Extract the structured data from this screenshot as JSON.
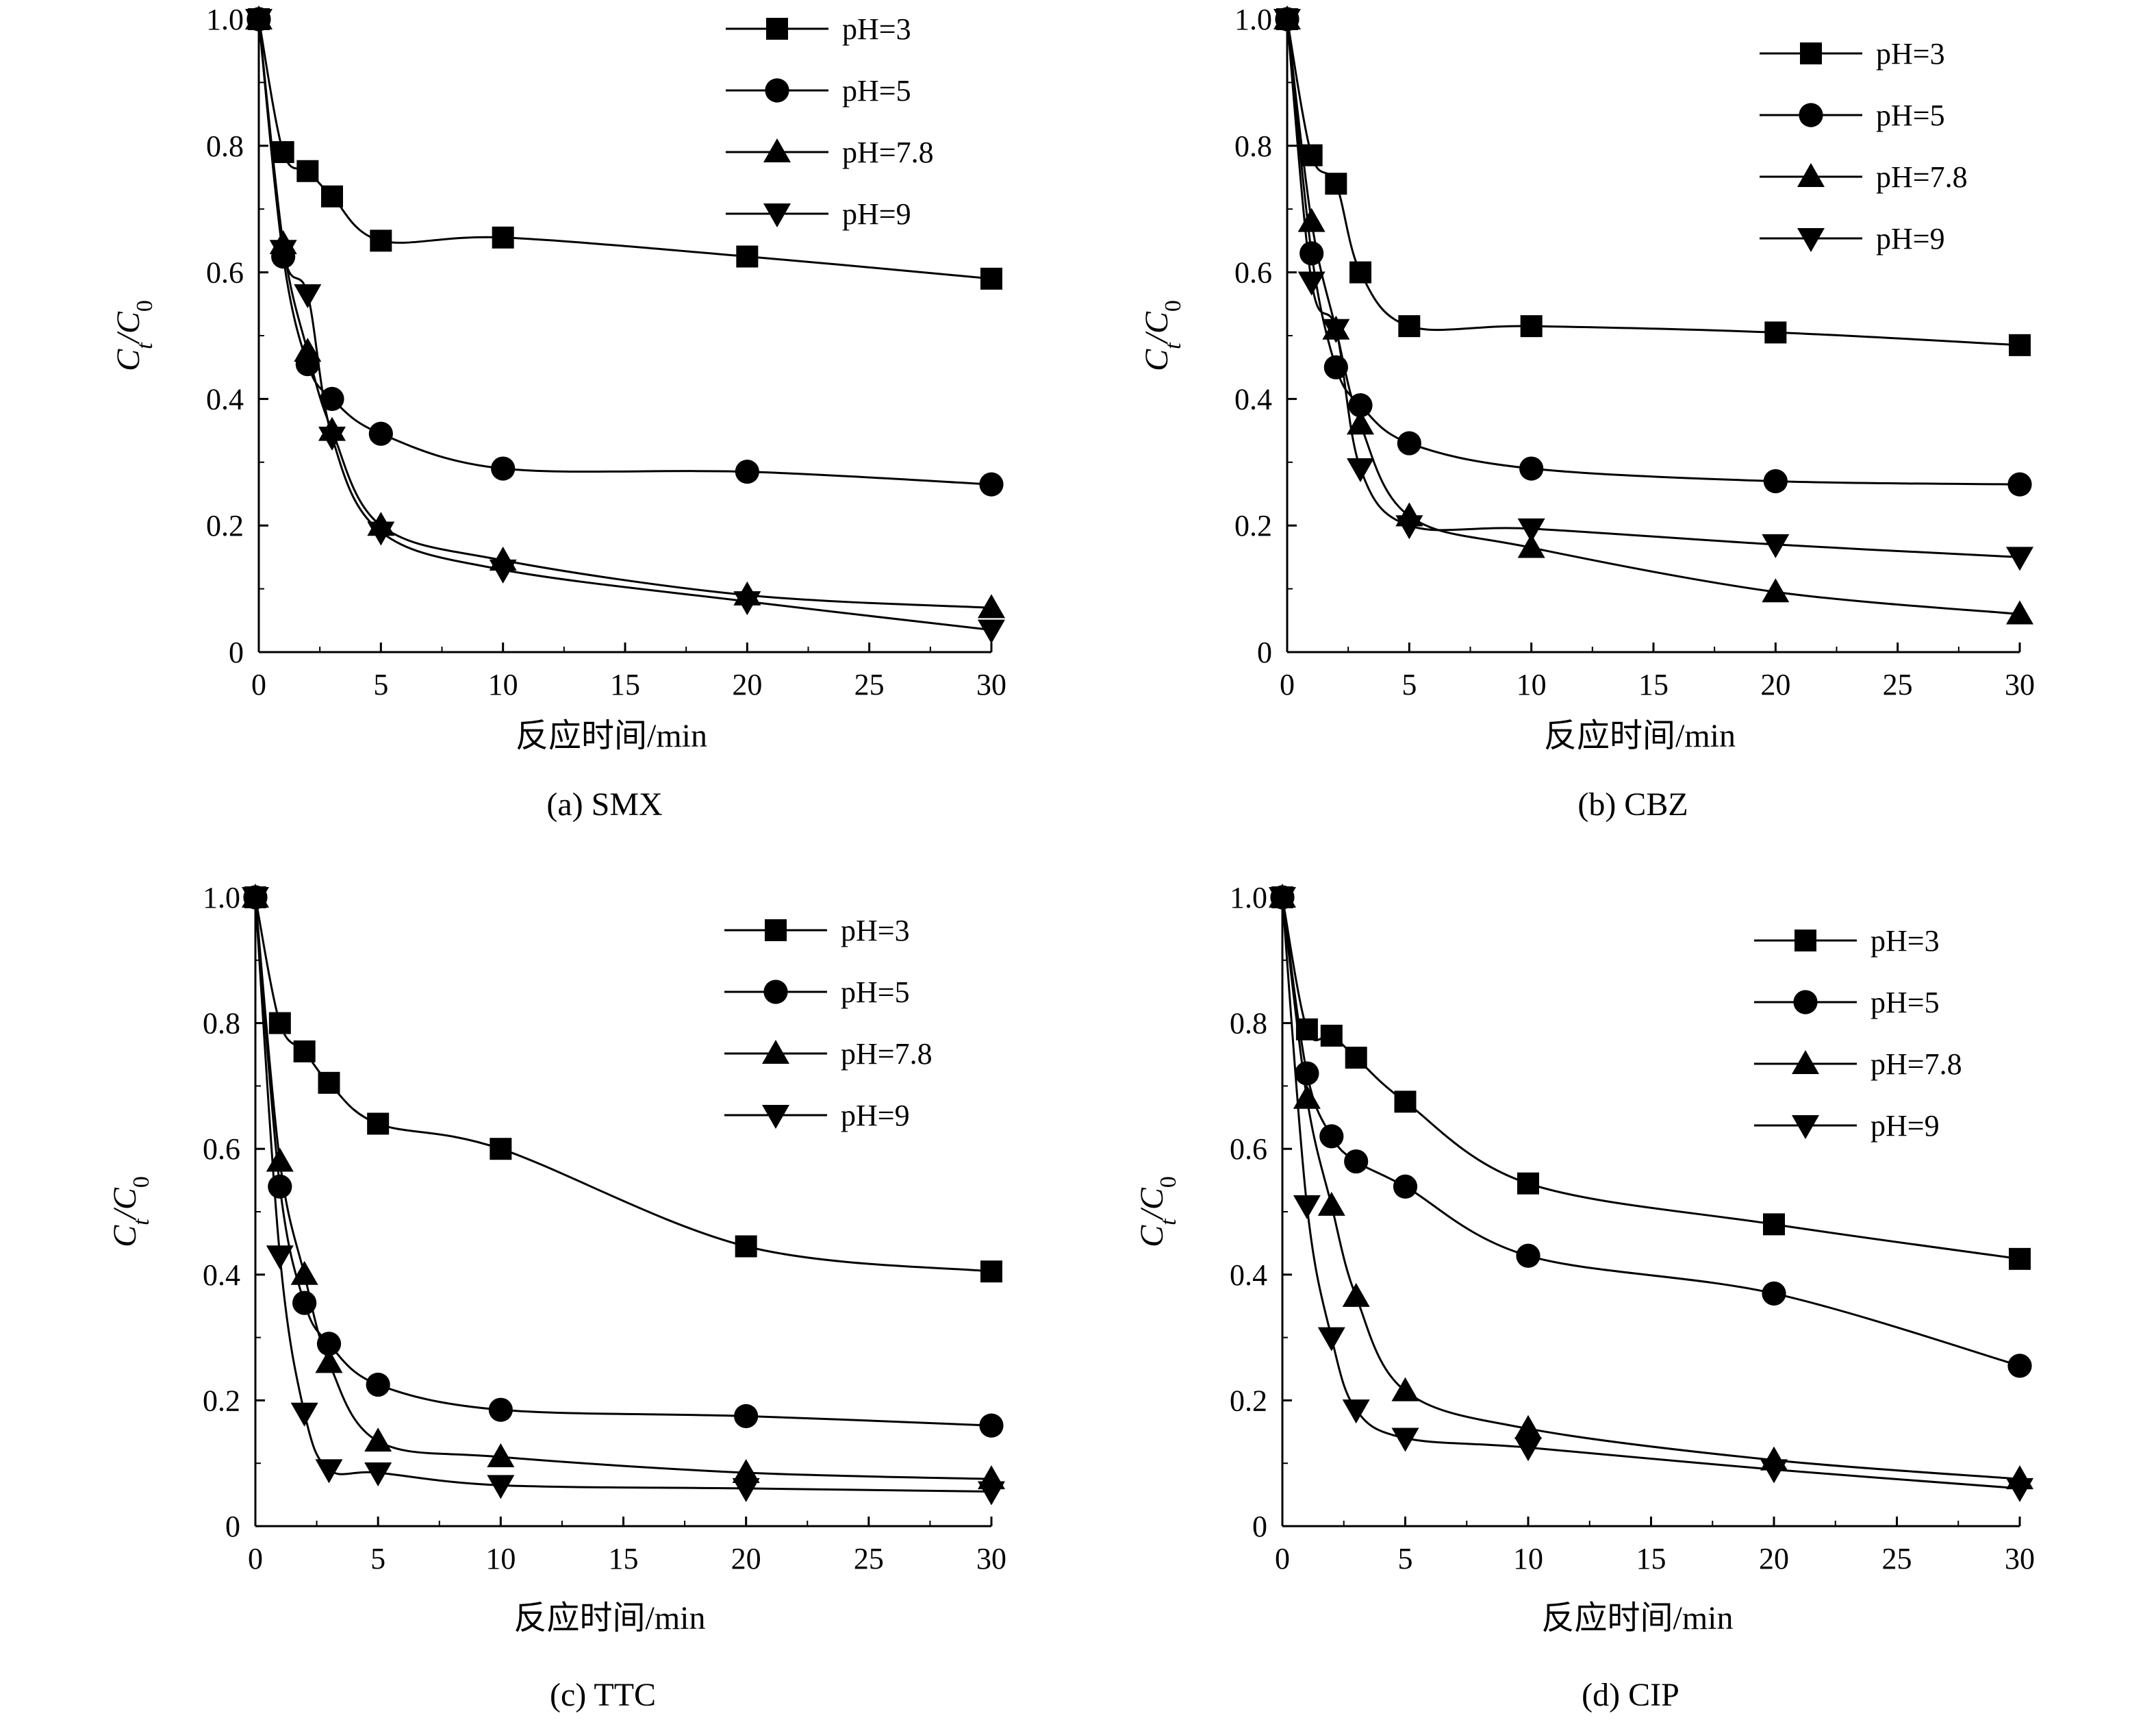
{
  "figure": {
    "x_axis_title": "反应时间/min",
    "y_axis_title_main": "C",
    "y_axis_title_sub1": "t",
    "y_axis_title_sep": "/C",
    "y_axis_title_sub2": "0"
  },
  "chart_data": [
    {
      "type": "line",
      "caption": "(a) SMX",
      "xlabel": "反应时间/min",
      "ylabel": "Ct/C0",
      "xlim": [
        0,
        30
      ],
      "ylim": [
        0,
        1.0
      ],
      "xticks": [
        0,
        5,
        10,
        15,
        20,
        25,
        30
      ],
      "xtick_labels": [
        "0",
        "5",
        "10",
        "15",
        "20",
        "25",
        "30"
      ],
      "yticks": [
        0,
        0.2,
        0.4,
        0.6,
        0.8,
        1.0
      ],
      "ytick_labels": [
        "0",
        "0.2",
        "0.4",
        "0.6",
        "0.8",
        "1.0"
      ],
      "legend_position": "top-right",
      "x": [
        0,
        1,
        2,
        3,
        5,
        10,
        20,
        30
      ],
      "series": [
        {
          "name": "pH=3",
          "marker": "square",
          "values": [
            1.0,
            0.79,
            0.76,
            0.72,
            0.65,
            0.655,
            0.625,
            0.59
          ]
        },
        {
          "name": "pH=5",
          "marker": "circle",
          "values": [
            1.0,
            0.625,
            0.455,
            0.4,
            0.345,
            0.29,
            0.285,
            0.265
          ]
        },
        {
          "name": "pH=7.8",
          "marker": "triangle-up",
          "values": [
            1.0,
            0.645,
            0.475,
            0.35,
            0.2,
            0.145,
            0.09,
            0.07
          ]
        },
        {
          "name": "pH=9",
          "marker": "triangle-down",
          "values": [
            1.0,
            0.635,
            0.565,
            0.34,
            0.19,
            0.13,
            0.08,
            0.035
          ]
        }
      ]
    },
    {
      "type": "line",
      "caption": "(b) CBZ",
      "xlabel": "反应时间/min",
      "ylabel": "Ct/C0",
      "xlim": [
        0,
        30
      ],
      "ylim": [
        0,
        1.0
      ],
      "xticks": [
        0,
        5,
        10,
        15,
        20,
        25,
        30
      ],
      "xtick_labels": [
        "0",
        "5",
        "10",
        "15",
        "20",
        "25",
        "30"
      ],
      "yticks": [
        0,
        0.2,
        0.4,
        0.6,
        0.8,
        1.0
      ],
      "ytick_labels": [
        "0",
        "0.2",
        "0.4",
        "0.6",
        "0.8",
        "1.0"
      ],
      "legend_position": "top-right",
      "x": [
        0,
        1,
        2,
        3,
        5,
        10,
        20,
        30
      ],
      "series": [
        {
          "name": "pH=3",
          "marker": "square",
          "values": [
            1.0,
            0.785,
            0.74,
            0.6,
            0.515,
            0.515,
            0.505,
            0.485
          ]
        },
        {
          "name": "pH=5",
          "marker": "circle",
          "values": [
            1.0,
            0.63,
            0.45,
            0.39,
            0.33,
            0.29,
            0.27,
            0.265
          ]
        },
        {
          "name": "pH=7.8",
          "marker": "triangle-up",
          "values": [
            1.0,
            0.68,
            0.51,
            0.36,
            0.215,
            0.165,
            0.095,
            0.06
          ]
        },
        {
          "name": "pH=9",
          "marker": "triangle-down",
          "values": [
            1.0,
            0.585,
            0.51,
            0.29,
            0.2,
            0.195,
            0.17,
            0.15
          ]
        }
      ]
    },
    {
      "type": "line",
      "caption": "(c) TTC",
      "xlabel": "反应时间/min",
      "ylabel": "Ct/C0",
      "xlim": [
        0,
        30
      ],
      "ylim": [
        0,
        1.0
      ],
      "xticks": [
        0,
        5,
        10,
        15,
        20,
        25,
        30
      ],
      "xtick_labels": [
        "0",
        "5",
        "10",
        "15",
        "20",
        "25",
        "30"
      ],
      "yticks": [
        0,
        0.2,
        0.4,
        0.6,
        0.8,
        1.0
      ],
      "ytick_labels": [
        "0",
        "0.2",
        "0.4",
        "0.6",
        "0.8",
        "1.0"
      ],
      "legend_position": "top-right",
      "x": [
        0,
        1,
        2,
        3,
        5,
        10,
        20,
        30
      ],
      "series": [
        {
          "name": "pH=3",
          "marker": "square",
          "values": [
            1.0,
            0.8,
            0.755,
            0.705,
            0.64,
            0.6,
            0.445,
            0.405
          ]
        },
        {
          "name": "pH=5",
          "marker": "circle",
          "values": [
            1.0,
            0.54,
            0.355,
            0.29,
            0.225,
            0.185,
            0.175,
            0.16
          ]
        },
        {
          "name": "pH=7.8",
          "marker": "triangle-up",
          "values": [
            1.0,
            0.58,
            0.4,
            0.26,
            0.135,
            0.11,
            0.085,
            0.075
          ]
        },
        {
          "name": "pH=9",
          "marker": "triangle-down",
          "values": [
            1.0,
            0.43,
            0.18,
            0.09,
            0.085,
            0.065,
            0.06,
            0.055
          ]
        }
      ]
    },
    {
      "type": "line",
      "caption": "(d) CIP",
      "xlabel": "反应时间/min",
      "ylabel": "Ct/C0",
      "xlim": [
        0,
        30
      ],
      "ylim": [
        0,
        1.0
      ],
      "xticks": [
        0,
        5,
        10,
        15,
        20,
        25,
        30
      ],
      "xtick_labels": [
        "0",
        "5",
        "10",
        "15",
        "20",
        "25",
        "30"
      ],
      "yticks": [
        0,
        0.2,
        0.4,
        0.6,
        0.8,
        1.0
      ],
      "ytick_labels": [
        "0",
        "0.2",
        "0.4",
        "0.6",
        "0.8",
        "1.0"
      ],
      "legend_position": "top-right",
      "x": [
        0,
        1,
        2,
        3,
        5,
        10,
        20,
        30
      ],
      "series": [
        {
          "name": "pH=3",
          "marker": "square",
          "values": [
            1.0,
            0.79,
            0.78,
            0.745,
            0.675,
            0.545,
            0.48,
            0.425
          ]
        },
        {
          "name": "pH=5",
          "marker": "circle",
          "values": [
            1.0,
            0.72,
            0.62,
            0.58,
            0.54,
            0.43,
            0.37,
            0.255
          ]
        },
        {
          "name": "pH=7.8",
          "marker": "triangle-up",
          "values": [
            1.0,
            0.68,
            0.51,
            0.365,
            0.215,
            0.155,
            0.105,
            0.075
          ]
        },
        {
          "name": "pH=9",
          "marker": "triangle-down",
          "values": [
            1.0,
            0.51,
            0.3,
            0.185,
            0.14,
            0.125,
            0.09,
            0.06
          ]
        }
      ]
    }
  ]
}
